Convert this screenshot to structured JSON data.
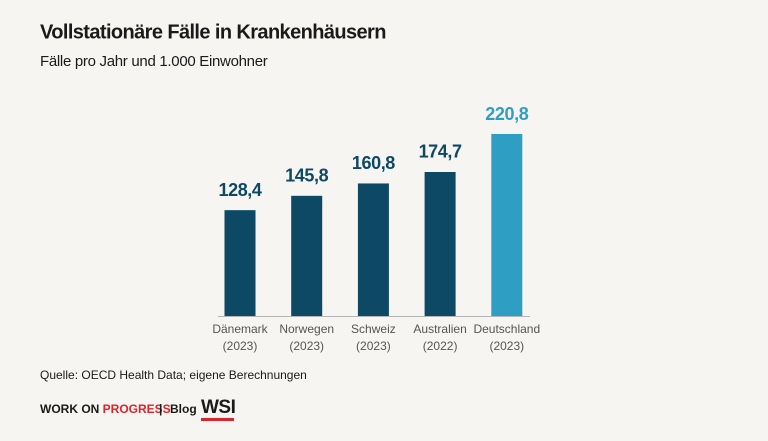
{
  "chart_data": {
    "type": "bar",
    "title": "Vollstationäre Fälle in Krankenhäusern",
    "subtitle": "Fälle pro Jahr und 1.000 Einwohner",
    "categories": [
      [
        "Dänemark",
        "(2023)"
      ],
      [
        "Norwegen",
        "(2023)"
      ],
      [
        "Schweiz",
        "(2023)"
      ],
      [
        "Australien",
        "(2022)"
      ],
      [
        "Deutschland",
        "(2023)"
      ]
    ],
    "values": [
      128.4,
      145.8,
      160.8,
      174.7,
      220.8
    ],
    "value_labels": [
      "128,4",
      "145,8",
      "160,8",
      "174,7",
      "220,8"
    ],
    "colors": [
      "#0d4864",
      "#0d4864",
      "#0d4864",
      "#0d4864",
      "#2f9ec3"
    ],
    "source": "Quelle: OECD Health Data; eigene Berechnungen"
  },
  "footer": {
    "brand_1": "WORK ON",
    "brand_2": "PROGRESS",
    "separator": "|",
    "blog": "Blog",
    "logo": "WSI"
  }
}
